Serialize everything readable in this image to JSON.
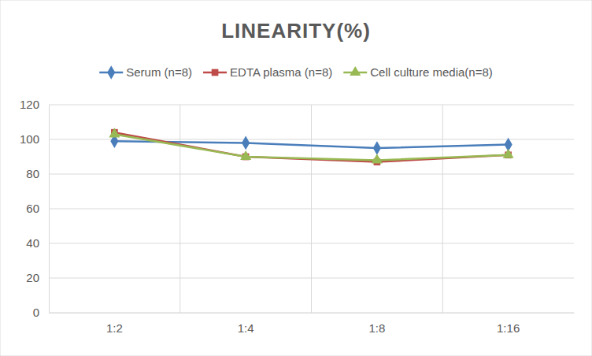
{
  "chart_data": {
    "type": "line",
    "title": "LINEARITY(%)",
    "categories": [
      "1:2",
      "1:4",
      "1:8",
      "1:16"
    ],
    "series": [
      {
        "name": "Serum (n=8)",
        "color": "#4a7ebb",
        "marker": "diamond",
        "values": [
          99,
          98,
          95,
          97
        ]
      },
      {
        "name": "EDTA plasma (n=8)",
        "color": "#be4b48",
        "marker": "square",
        "values": [
          104,
          90,
          87,
          91
        ]
      },
      {
        "name": "Cell culture media(n=8)",
        "color": "#98b954",
        "marker": "triangle",
        "values": [
          103,
          90,
          88,
          91
        ]
      }
    ],
    "ylim": [
      0,
      120
    ],
    "yticks": [
      0,
      20,
      40,
      60,
      80,
      100,
      120
    ],
    "grid": true,
    "legend": "top"
  }
}
